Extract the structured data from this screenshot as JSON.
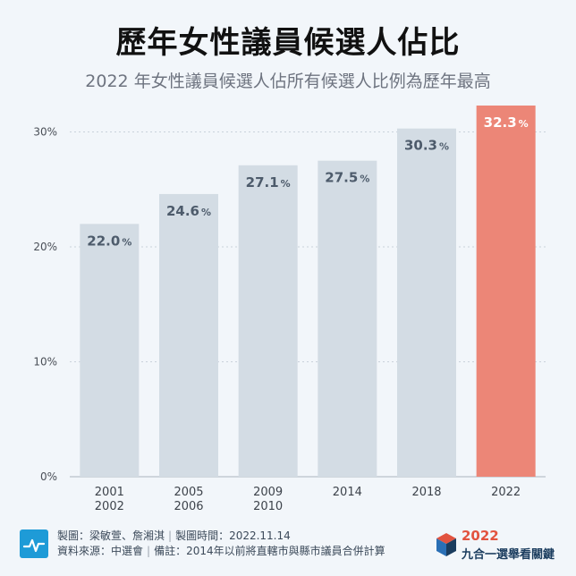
{
  "header": {
    "title": "歷年女性議員候選人佔比",
    "subtitle": "2022 年女性議員候選人佔所有候選人比例為歷年最高"
  },
  "chart_data": {
    "type": "bar",
    "categories": [
      [
        "2001",
        "2002"
      ],
      [
        "2005",
        "2006"
      ],
      [
        "2009",
        "2010"
      ],
      [
        "2014"
      ],
      [
        "2018"
      ],
      [
        "2022"
      ]
    ],
    "values": [
      22.0,
      24.6,
      27.1,
      27.5,
      30.3,
      32.3
    ],
    "value_labels": [
      "22.0",
      "24.6",
      "27.1",
      "27.5",
      "30.3",
      "32.3"
    ],
    "unit": "%",
    "ylim": [
      0,
      32.3
    ],
    "yticks": [
      0,
      10,
      20,
      30
    ],
    "ytick_labels": [
      "0%",
      "10%",
      "20%",
      "30%"
    ],
    "colors": {
      "default_bar": "#d3dce4",
      "highlight_bar": "#ec8677",
      "label_default": "#4d5b6b",
      "label_highlight": "#ffffff",
      "grid": "#c9d2db"
    },
    "highlight_index": 5,
    "grid": true
  },
  "footer": {
    "line1_a": "製圖：梁敏萱、詹湘淇",
    "line1_b": "製圖時間：2022.11.14",
    "line2_a": "資料來源：中選會",
    "line2_b": "備註：2014年以前將直轄市與縣市議員合併計算",
    "separator": "|",
    "logo_icon": "pulse-chart-icon",
    "brand_icon": "cube-logo-icon",
    "brand_year": "2022",
    "brand_name": "九合一選舉看關鍵"
  }
}
